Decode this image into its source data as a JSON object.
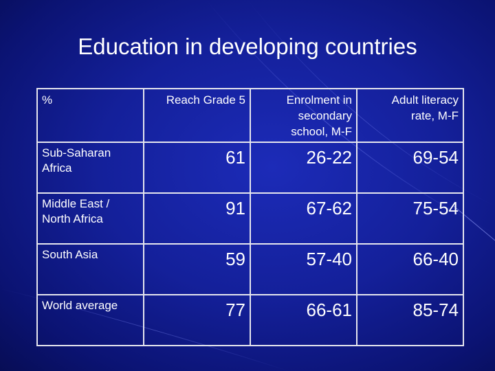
{
  "slide": {
    "title": "Education in developing countries"
  },
  "table": {
    "headers": [
      "%",
      "Reach Grade 5",
      "Enrolment in secondary school, M-F",
      "Adult literacy rate, M-F"
    ],
    "header_lines": {
      "col2": [
        "Enrolment in",
        "secondary",
        "school, M-F"
      ],
      "col3": [
        "Adult literacy",
        "rate, M-F"
      ]
    },
    "rows": [
      {
        "region_lines": [
          "Sub-Saharan",
          "Africa"
        ],
        "reach_grade_5": "61",
        "enrolment": "26-22",
        "literacy": "69-54"
      },
      {
        "region_lines": [
          "Middle East /",
          "North Africa"
        ],
        "reach_grade_5": "91",
        "enrolment": "67-62",
        "literacy": "75-54"
      },
      {
        "region_lines": [
          "South Asia"
        ],
        "reach_grade_5": "59",
        "enrolment": "57-40",
        "literacy": "66-40"
      },
      {
        "region_lines": [
          "World average"
        ],
        "reach_grade_5": "77",
        "enrolment": "66-61",
        "literacy": "85-74"
      }
    ]
  },
  "colors": {
    "background": "#14209a",
    "text": "#ffffff",
    "grid": "#e6e6ee"
  }
}
